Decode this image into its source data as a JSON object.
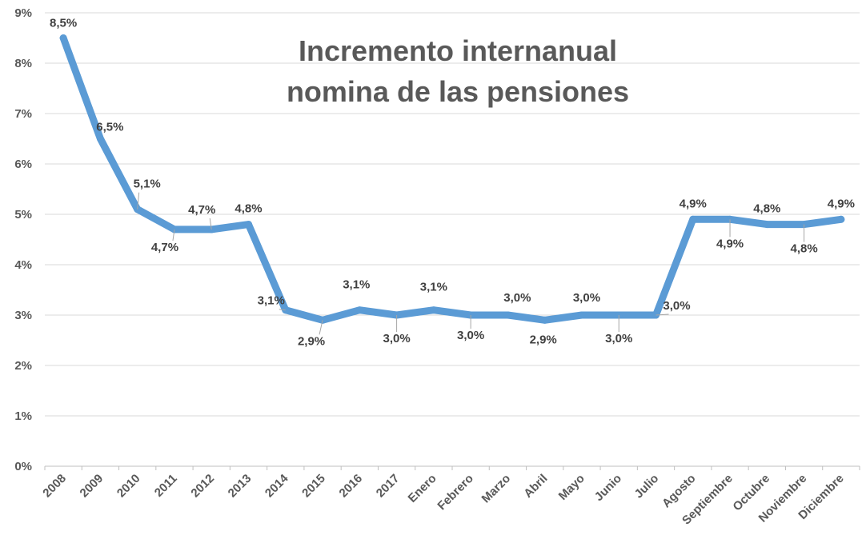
{
  "chart_data": {
    "type": "line",
    "title_lines": [
      "Incremento internanual",
      "nomina de las pensiones"
    ],
    "xlabel": "",
    "ylabel": "",
    "ylim": [
      0,
      9
    ],
    "y_ticks": [
      "0%",
      "1%",
      "2%",
      "3%",
      "4%",
      "5%",
      "6%",
      "7%",
      "8%",
      "9%"
    ],
    "grid": true,
    "legend": "none",
    "series_color": "#5b9bd5",
    "categories": [
      "2008",
      "2009",
      "2010",
      "2011",
      "2012",
      "2013",
      "2014",
      "2015",
      "2016",
      "2017",
      "Enero",
      "Febrero",
      "Marzo",
      "Abril",
      "Mayo",
      "Junio",
      "Julio",
      "Agosto",
      "Septiembre",
      "Octubre",
      "Noviembre",
      "Diciembre"
    ],
    "values": [
      8.5,
      6.5,
      5.1,
      4.7,
      4.7,
      4.8,
      3.1,
      2.9,
      3.1,
      3.0,
      3.1,
      3.0,
      3.0,
      2.9,
      3.0,
      3.0,
      3.0,
      4.9,
      4.9,
      4.8,
      4.8,
      4.9
    ],
    "data_labels": [
      "8,5%",
      "6,5%",
      "5,1%",
      "4,7%",
      "4,7%",
      "4,8%",
      "3,1%",
      "2,9%",
      "3,1%",
      "3,0%",
      "3,1%",
      "3,0%",
      "3,0%",
      "2,9%",
      "3,0%",
      "3,0%",
      "3,0%",
      "4,9%",
      "4,9%",
      "4,8%",
      "4,8%",
      "4,9%"
    ]
  }
}
